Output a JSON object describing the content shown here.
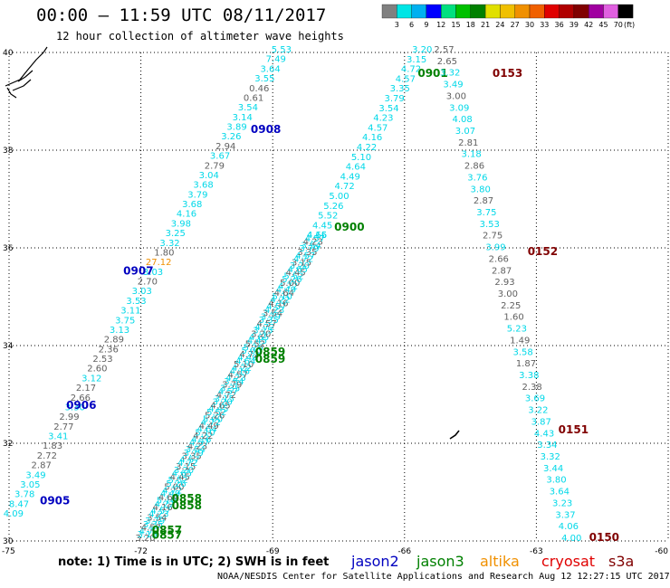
{
  "title": "00:00 – 11:59 UTC 08/11/2017",
  "subtitle": "12 hour collection of altimeter wave heights",
  "footer": "NOAA/NESDIS Center for Satellite Applications and Research    Aug 12 12:27:15 UTC 2017",
  "note": "note:  1) Time is in UTC;  2) SWH is in feet",
  "colorbar": {
    "unit": "(ft)",
    "labels": [
      "3",
      "6",
      "9",
      "12",
      "15",
      "18",
      "21",
      "24",
      "27",
      "30",
      "33",
      "36",
      "39",
      "42",
      "45",
      "70"
    ],
    "colors": [
      "#808080",
      "#00e5e5",
      "#00b0f0",
      "#0000ff",
      "#00e080",
      "#00c000",
      "#008000",
      "#e0e000",
      "#f0c000",
      "#f09000",
      "#f06000",
      "#e00000",
      "#b00000",
      "#800000",
      "#a000a0",
      "#e060e0",
      "#000000"
    ]
  },
  "axes": {
    "lon_range": [
      -75,
      -60
    ],
    "lat_range": [
      30,
      40
    ],
    "lon_ticks": [
      -75,
      -72,
      -69,
      -66,
      -63,
      -60
    ],
    "lat_ticks": [
      30,
      32,
      34,
      36,
      38,
      40
    ],
    "lon_tick_labels": [
      "-75",
      "-72",
      "-69",
      "-66",
      "-63",
      "-60"
    ],
    "lat_tick_labels": [
      "30",
      "32",
      "34",
      "36",
      "38",
      "40"
    ],
    "grid": true
  },
  "legend": [
    {
      "name": "jason2",
      "color": "#0000c0"
    },
    {
      "name": "jason3",
      "color": "#008000"
    },
    {
      "name": "altika",
      "color": "#f09000"
    },
    {
      "name": "cryosat",
      "color": "#e00000"
    },
    {
      "name": "s3a",
      "color": "#800000"
    }
  ],
  "colors": {
    "cyan": "#00d8e8",
    "gray": "#606060",
    "orange": "#f09000"
  },
  "tracks": [
    {
      "satellite": "jason2",
      "start": [
        -74.9,
        30.5
      ],
      "end": [
        -68.8,
        40.0
      ],
      "values": [
        "4.09",
        "8.47",
        "3.78",
        "3.05",
        "3.49",
        "2.87",
        "2.72",
        "1.83",
        "3.41",
        "2.77",
        "2.99",
        "3.30",
        "2.66",
        "2.17",
        "3.12",
        "2.60",
        "2.53",
        "2.36",
        "2.89",
        "3.13",
        "3.75",
        "3.11",
        "3.53",
        "3.03",
        "2.70",
        "3.03",
        "27.12",
        "1.80",
        "3.32",
        "3.25",
        "3.98",
        "4.16",
        "3.68",
        "3.79",
        "3.68",
        "3.04",
        "2.79",
        "3.67",
        "2.94",
        "3.26",
        "3.89",
        "3.14",
        "3.54",
        "0.61",
        "0.46",
        "3.55",
        "3.64",
        "7.49",
        "5.53"
      ],
      "gray": [
        "2.89",
        "2.36",
        "2.53",
        "2.60",
        "2.17",
        "2.66",
        "2.99",
        "2.77",
        "1.83",
        "2.72",
        "2.87",
        "2.70",
        "1.80",
        "2.79",
        "2.94",
        "0.61",
        "0.46"
      ],
      "orange": [
        "27.12"
      ],
      "times": [
        {
          "label": "0905",
          "lon": -74.3,
          "lat": 30.75
        },
        {
          "label": "0906",
          "lon": -73.7,
          "lat": 32.7
        },
        {
          "label": "0907",
          "lon": -72.4,
          "lat": 35.45
        },
        {
          "label": "0908",
          "lon": -69.5,
          "lat": 38.35
        }
      ]
    },
    {
      "satellite": "jason3",
      "start": [
        -71.9,
        30.0
      ],
      "end": [
        -65.6,
        40.0
      ],
      "values": [
        "3.20",
        "3.15",
        "4.72",
        "4.57",
        "3.35",
        "3.79",
        "3.54",
        "4.23",
        "4.57",
        "4.16",
        "4.22",
        "5.10",
        "4.64",
        "4.49",
        "4.72",
        "5.00",
        "5.26",
        "5.52",
        "4.45",
        "4.65"
      ],
      "gray": [],
      "orange": [],
      "dense": true,
      "times": [
        {
          "label": "0857",
          "lon": -71.75,
          "lat": 30.05
        },
        {
          "label": "0857",
          "lon": -71.75,
          "lat": 30.15
        },
        {
          "label": "0858",
          "lon": -71.3,
          "lat": 30.8
        },
        {
          "label": "0858",
          "lon": -71.3,
          "lat": 30.65
        },
        {
          "label": "0859",
          "lon": -69.4,
          "lat": 33.8
        },
        {
          "label": "0859",
          "lon": -69.4,
          "lat": 33.65
        },
        {
          "label": "0900",
          "lon": -67.6,
          "lat": 36.35
        },
        {
          "label": "0901",
          "lon": -65.7,
          "lat": 39.5
        }
      ]
    },
    {
      "satellite": "s3a",
      "start": [
        -65.1,
        40.0
      ],
      "end": [
        -62.2,
        30.0
      ],
      "values": [
        "2.57",
        "2.65",
        "3.32",
        "3.49",
        "3.00",
        "3.09",
        "4.08",
        "3.07",
        "2.81",
        "3.18",
        "2.86",
        "3.76",
        "3.80",
        "2.87",
        "3.75",
        "3.53",
        "2.75",
        "3.99",
        "2.66",
        "2.87",
        "2.93",
        "3.00",
        "2.25",
        "1.60",
        "5.23",
        "1.49",
        "3.58",
        "1.87",
        "3.38",
        "2.38",
        "3.69",
        "3.22",
        "3.87",
        "4.43",
        "3.34",
        "3.32",
        "3.44",
        "3.80",
        "3.64",
        "3.23",
        "3.37",
        "4.06",
        "4.00"
      ],
      "gray": [
        "2.57",
        "2.65",
        "3.00",
        "2.81",
        "2.86",
        "2.87",
        "2.75",
        "2.66",
        "2.87",
        "2.93",
        "3.00",
        "2.25",
        "1.60",
        "1.49",
        "1.87",
        "2.38"
      ],
      "orange": [],
      "times": [
        {
          "label": "0153",
          "lon": -64.0,
          "lat": 39.5
        },
        {
          "label": "0152",
          "lon": -63.2,
          "lat": 35.85
        },
        {
          "label": "0151",
          "lon": -62.5,
          "lat": 32.2
        },
        {
          "label": "0150",
          "lon": -61.8,
          "lat": 30.0
        }
      ]
    }
  ]
}
